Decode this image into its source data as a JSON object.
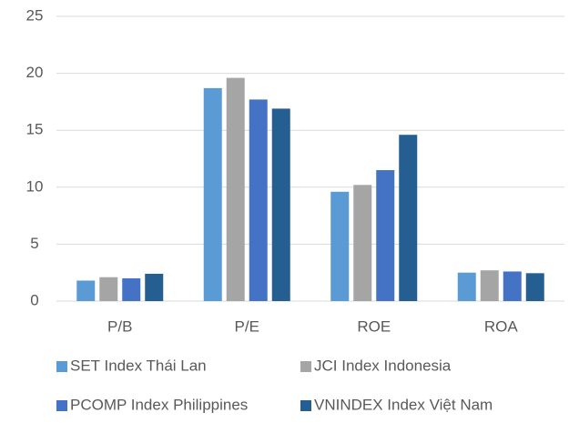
{
  "chart_data": {
    "type": "bar",
    "categories": [
      "P/B",
      "P/E",
      "ROE",
      "ROA"
    ],
    "series": [
      {
        "name": "SET Index Thái Lan",
        "color": "#5b9bd5",
        "values": [
          1.8,
          18.7,
          9.6,
          2.5
        ]
      },
      {
        "name": "JCI Index Indonesia",
        "color": "#a5a5a5",
        "values": [
          2.1,
          19.6,
          10.2,
          2.7
        ]
      },
      {
        "name": "PCOMP Index Philippines",
        "color": "#4472c4",
        "values": [
          2.0,
          17.7,
          11.5,
          2.6
        ]
      },
      {
        "name": "VNINDEX Index Việt Nam",
        "color": "#255e91",
        "values": [
          2.4,
          16.9,
          14.6,
          2.45
        ]
      }
    ],
    "ylim": [
      0,
      25
    ],
    "yticks": [
      0,
      5,
      10,
      15,
      20,
      25
    ],
    "grid": true,
    "legend": "bottom"
  }
}
